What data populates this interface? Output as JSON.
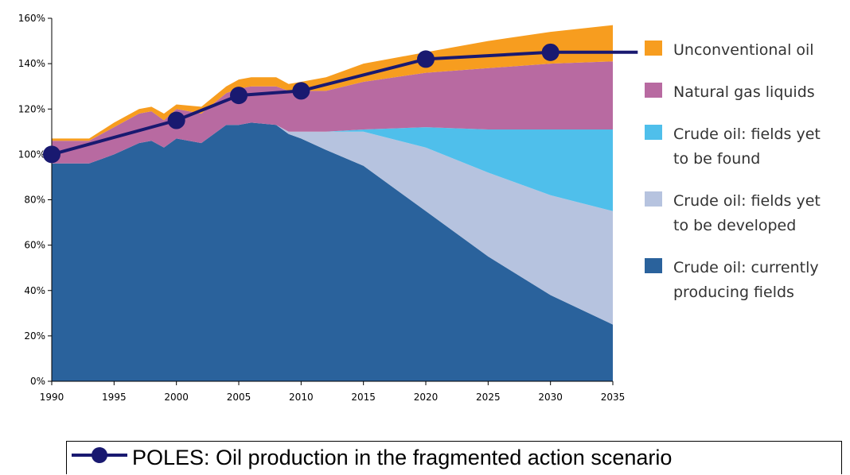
{
  "chart_data": {
    "type": "area",
    "stacked": true,
    "xlabel": "",
    "ylabel": "",
    "x_ticks": [
      "1990",
      "1995",
      "2000",
      "2005",
      "2010",
      "2015",
      "2020",
      "2025",
      "2030",
      "2035"
    ],
    "y_ticks": [
      "0%",
      "20%",
      "40%",
      "60%",
      "80%",
      "100%",
      "120%",
      "140%",
      "160%"
    ],
    "xlim": [
      1990,
      2035
    ],
    "ylim": [
      0,
      160
    ],
    "unit": "%",
    "x": [
      1990,
      1993,
      1995,
      1997,
      1998,
      1999,
      2000,
      2002,
      2004,
      2005,
      2006,
      2008,
      2009,
      2010,
      2012,
      2015,
      2020,
      2025,
      2030,
      2035
    ],
    "series": [
      {
        "name": "Crude oil: currently producing fields",
        "color": "#2a629c",
        "values": [
          96,
          96,
          100,
          105,
          106,
          103,
          107,
          105,
          113,
          113,
          114,
          113,
          109,
          107,
          102,
          95,
          75,
          55,
          38,
          25
        ]
      },
      {
        "name": "Crude oil: fields yet to be developed",
        "color": "#b6c3df",
        "values": [
          0,
          0,
          0,
          0,
          0,
          0,
          0,
          0,
          0,
          0,
          0,
          0,
          1,
          3,
          8,
          15,
          28,
          37,
          44,
          50
        ]
      },
      {
        "name": "Crude oil: fields yet to be found",
        "color": "#4fbfeb",
        "values": [
          0,
          0,
          0,
          0,
          0,
          0,
          0,
          0,
          0,
          0,
          0,
          0,
          0,
          0,
          0,
          1,
          9,
          19,
          29,
          36
        ]
      },
      {
        "name": "Natural gas liquids",
        "color": "#b86aa1",
        "values": [
          10,
          10,
          12,
          13,
          13,
          12,
          13,
          13,
          14,
          16,
          16,
          17,
          18,
          18,
          18,
          21,
          24,
          27,
          29,
          30
        ]
      },
      {
        "name": "Unconventional oil",
        "color": "#f79d1f",
        "values": [
          1,
          1,
          2,
          2,
          2,
          3,
          2,
          3,
          3,
          4,
          4,
          4,
          3,
          4,
          6,
          8,
          9,
          12,
          14,
          16
        ]
      }
    ],
    "line_series": {
      "name": "POLES: Oil production in the fragmented action scenario",
      "color": "#191970",
      "x": [
        1990,
        2000,
        2005,
        2010,
        2020,
        2030,
        2035,
        2037
      ],
      "values": [
        100,
        115,
        126,
        128,
        142,
        145,
        145,
        145
      ],
      "markers_at": [
        1990,
        2000,
        2005,
        2010,
        2020,
        2030
      ]
    },
    "legend_placement": "right",
    "grid": false
  },
  "legend": [
    {
      "lines": [
        "Unconventional oil"
      ],
      "color": "#f79d1f"
    },
    {
      "lines": [
        "Natural gas liquids"
      ],
      "color": "#b86aa1"
    },
    {
      "lines": [
        "Crude oil: fields yet",
        "to be found"
      ],
      "color": "#4fbfeb"
    },
    {
      "lines": [
        "Crude oil: fields yet",
        "to be developed"
      ],
      "color": "#b6c3df"
    },
    {
      "lines": [
        "Crude oil: currently",
        "producing fields"
      ],
      "color": "#2a629c"
    }
  ],
  "poles_legend": {
    "label": "POLES: Oil production in the fragmented action scenario",
    "color": "#191970"
  }
}
